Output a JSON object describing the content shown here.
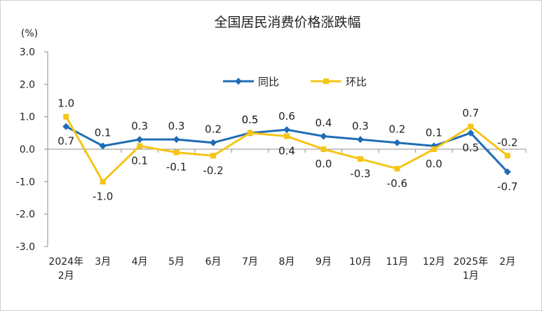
{
  "chart_data": {
    "type": "line",
    "title": "全国居民消费价格涨跌幅",
    "ylabel": "(%)",
    "ylim": [
      -3.0,
      3.0
    ],
    "yticks": [
      "3.0",
      "2.0",
      "1.0",
      "0.0",
      "-1.0",
      "-2.0",
      "-3.0"
    ],
    "categories": [
      [
        "2024年",
        "2月"
      ],
      [
        "3月"
      ],
      [
        "4月"
      ],
      [
        "5月"
      ],
      [
        "6月"
      ],
      [
        "7月"
      ],
      [
        "8月"
      ],
      [
        "9月"
      ],
      [
        "10月"
      ],
      [
        "11月"
      ],
      [
        "12月"
      ],
      [
        "2025年",
        "1月"
      ],
      [
        "2月"
      ]
    ],
    "legend_position": "top-center",
    "grid": false,
    "series": [
      {
        "name": "同比",
        "color": "#1f6db4",
        "marker": "diamond",
        "values": [
          0.7,
          0.1,
          0.3,
          0.3,
          0.2,
          0.5,
          0.6,
          0.4,
          0.3,
          0.2,
          0.1,
          0.5,
          -0.7
        ],
        "labels": [
          "0.7",
          "0.1",
          "0.3",
          "0.3",
          "0.2",
          "0.5",
          "0.6",
          "0.4",
          "0.3",
          "0.2",
          "0.1",
          "0.5",
          "-0.7"
        ]
      },
      {
        "name": "环比",
        "color": "#f5c518",
        "marker": "square",
        "values": [
          1.0,
          -1.0,
          0.1,
          -0.1,
          -0.2,
          0.5,
          0.4,
          0.0,
          -0.3,
          -0.6,
          0.0,
          0.7,
          -0.2
        ],
        "labels": [
          "1.0",
          "-1.0",
          "0.1",
          "-0.1",
          "-0.2",
          "0.5",
          "0.4",
          "0.0",
          "-0.3",
          "-0.6",
          "0.0",
          "0.7",
          "-0.2"
        ]
      }
    ]
  }
}
